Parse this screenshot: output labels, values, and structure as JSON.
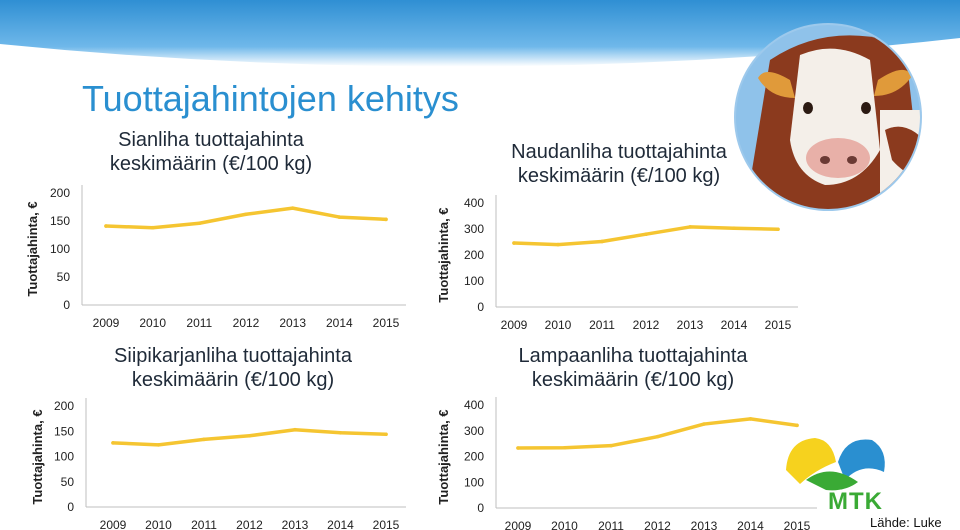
{
  "slide": {
    "title": "Tuottajahintojen kehitys",
    "source": "Lähde: Luke",
    "logo_text": "MTK"
  },
  "colors": {
    "title": "#2a8fd0",
    "line": "#f5c531",
    "axis": "#bfbfbf",
    "header_band": "#2f8fd3",
    "logo_green": "#3aaa35",
    "logo_blue": "#2a8fd0",
    "logo_yellow": "#f6d21e"
  },
  "chart_data": [
    {
      "id": "sianliha",
      "type": "line",
      "title_lines": [
        "Sianliha tuottajahinta",
        "keskimäärin (€/100 kg)"
      ],
      "ylabel": "Tuottajahinta, €",
      "x": [
        "2009",
        "2010",
        "2011",
        "2012",
        "2013",
        "2014",
        "2015"
      ],
      "y_ticks": [
        0,
        50,
        100,
        150,
        200
      ],
      "ylim": [
        0,
        200
      ],
      "series": [
        {
          "values": [
            141,
            138,
            146,
            162,
            173,
            157,
            153
          ]
        }
      ]
    },
    {
      "id": "naudanliha",
      "type": "line",
      "title_lines": [
        "Naudanliha tuottajahinta",
        "keskimäärin (€/100 kg)"
      ],
      "ylabel": "Tuottajahinta, €",
      "x": [
        "2009",
        "2010",
        "2011",
        "2012",
        "2013",
        "2014",
        "2015"
      ],
      "y_ticks": [
        0,
        100,
        200,
        300,
        400
      ],
      "ylim": [
        0,
        400
      ],
      "series": [
        {
          "values": [
            246,
            240,
            252,
            280,
            308,
            303,
            299
          ]
        }
      ]
    },
    {
      "id": "siipikarjanliha",
      "type": "line",
      "title_lines": [
        "Siipikarjanliha tuottajahinta",
        "keskimäärin (€/100 kg)"
      ],
      "ylabel": "Tuottajahinta, €",
      "x": [
        "2009",
        "2010",
        "2011",
        "2012",
        "2013",
        "2014",
        "2015"
      ],
      "y_ticks": [
        0,
        50,
        100,
        150,
        200
      ],
      "ylim": [
        0,
        200
      ],
      "series": [
        {
          "values": [
            127,
            123,
            134,
            141,
            153,
            147,
            144
          ]
        }
      ]
    },
    {
      "id": "lampaanliha",
      "type": "line",
      "title_lines": [
        "Lampaanliha tuottajahinta",
        "keskimäärin (€/100 kg)"
      ],
      "ylabel": "Tuottajahinta, €",
      "x": [
        "2009",
        "2010",
        "2011",
        "2012",
        "2013",
        "2014",
        "2015"
      ],
      "y_ticks": [
        0,
        100,
        200,
        300,
        400
      ],
      "ylim": [
        0,
        400
      ],
      "series": [
        {
          "values": [
            233,
            234,
            242,
            277,
            326,
            346,
            321
          ]
        }
      ]
    }
  ]
}
